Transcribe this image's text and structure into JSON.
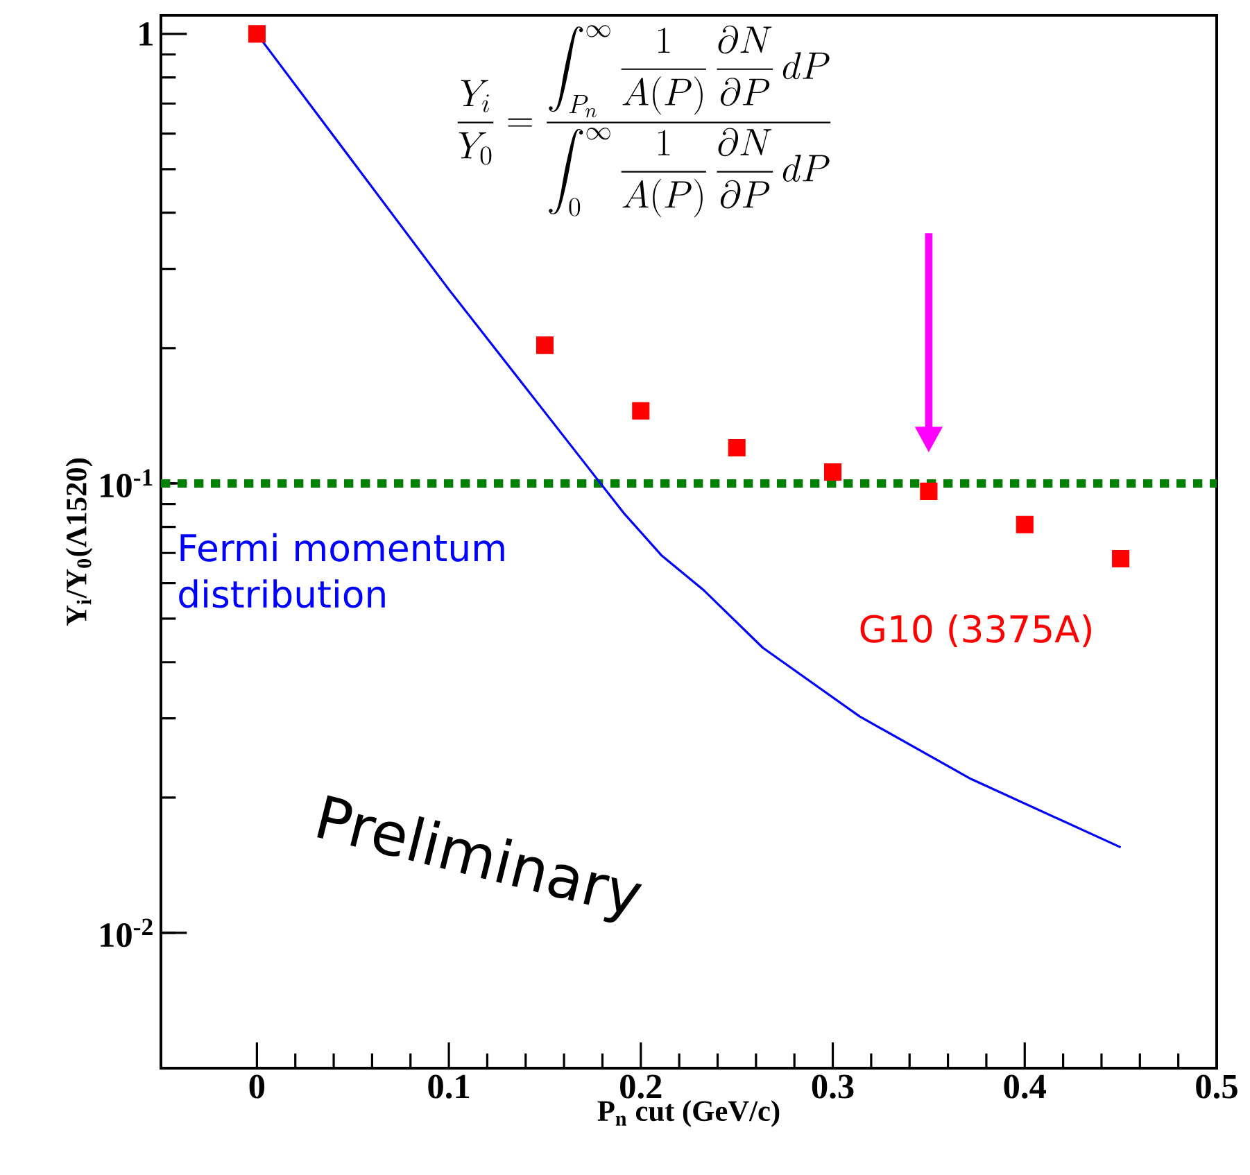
{
  "chart_data": {
    "type": "scatter",
    "xlabel": "P$_{n}$ cut (GeV/c)",
    "ylabel": "Y$_{i}$/Y$_{0}$(Λ1520)",
    "xlim": [
      -0.05,
      0.5
    ],
    "ylim": [
      0.005,
      1.1
    ],
    "log": "y",
    "xticks": [
      0,
      0.1,
      0.2,
      0.3,
      0.4,
      0.5
    ],
    "yticks": [
      {
        "value": 0.01,
        "label": "10$^{-2}$"
      },
      {
        "value": 0.1,
        "label": "10$^{-1}$"
      },
      1
    ],
    "grid": false,
    "series": [
      {
        "name": "Fermi momentum distribution",
        "type": "line",
        "color": "#0000ff",
        "marker": "none",
        "line_style": "solid",
        "x": [
          0,
          0.1,
          0.179,
          0.191,
          0.211,
          0.2325,
          0.2635,
          0.314,
          0.372,
          0.45
        ],
        "values": [
          1.0,
          0.27,
          0.1,
          0.086,
          0.069,
          0.058,
          0.0431,
          0.0303,
          0.022,
          0.0155
        ]
      },
      {
        "name": "G10 (3375A)",
        "color": "#ff0000",
        "marker": "square",
        "x": [
          0,
          0.15,
          0.2,
          0.25,
          0.3,
          0.35,
          0.4,
          0.45
        ],
        "values": [
          1.0,
          0.203,
          0.145,
          0.12,
          0.106,
          0.096,
          0.081,
          0.068
        ]
      }
    ],
    "ref_lines": [
      {
        "axis": "y",
        "value": 0.1,
        "color": "#008000",
        "line_style": "dotted"
      }
    ],
    "annotations": [
      "\\dfrac{Y_i}{Y_0}=\\dfrac{\\displaystyle\\int_{P_n}^{\\infty}\\dfrac{1}{A(P)}\\,\\dfrac{\\partial N}{\\partial P}\\,dP}{\\displaystyle\\int_{0}^{\\infty}\\dfrac{1}{A(P)}\\,\\dfrac{\\partial N}{\\partial P}\\,dP}",
      "Preliminary"
    ]
  }
}
